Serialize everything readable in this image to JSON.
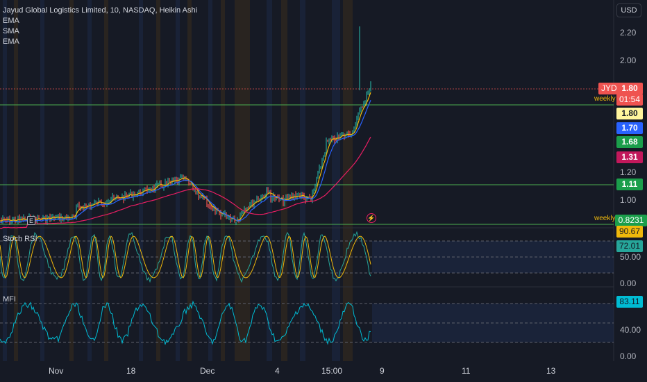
{
  "header": {
    "symbol_line": "Jayud Global Logistics Limited, 10, NASDAQ, Heikin Ashi",
    "indicators": [
      "EMA",
      "SMA",
      "EMA"
    ]
  },
  "currency_button": "USD",
  "price_axis": {
    "ticks": [
      "2.20",
      "2.00",
      "1.20",
      "1.00"
    ]
  },
  "price_labels": {
    "symbol_tag": "JYD",
    "last_price": "1.80",
    "countdown": "01:54",
    "weekly_upper": "weekly",
    "ema_value": "1.80",
    "sma_value": "1.70",
    "ema2_value": "1.68",
    "ema3_value": "1.31",
    "level_value": "1.11",
    "weekly_lower": "weekly",
    "weekly_level_value": "0.8231"
  },
  "stoch_rsi": {
    "title": "Stoch RSI",
    "k_value": "90.67",
    "d_value": "72.01",
    "ticks": [
      "50.00",
      "0.00"
    ]
  },
  "mfi": {
    "title": "MFI",
    "value": "83.11",
    "ticks": [
      "40.00",
      "0.00"
    ]
  },
  "time_axis": {
    "labels": [
      "Nov",
      "18",
      "Dec",
      "4",
      "15:00",
      "9",
      "11",
      "13"
    ]
  },
  "markers": {
    "earnings": "E",
    "flash": "⚡"
  },
  "colors": {
    "background": "#161a25",
    "up": "#26a69a",
    "down": "#ef5350",
    "ema_line": "#f0b90b",
    "sma_line": "#2962ff",
    "ema_long": "#e91e63",
    "level_green": "#4caf50",
    "stoch_k": "#26a69a",
    "stoch_d": "#f0b90b",
    "mfi_line": "#00bcd4"
  }
}
